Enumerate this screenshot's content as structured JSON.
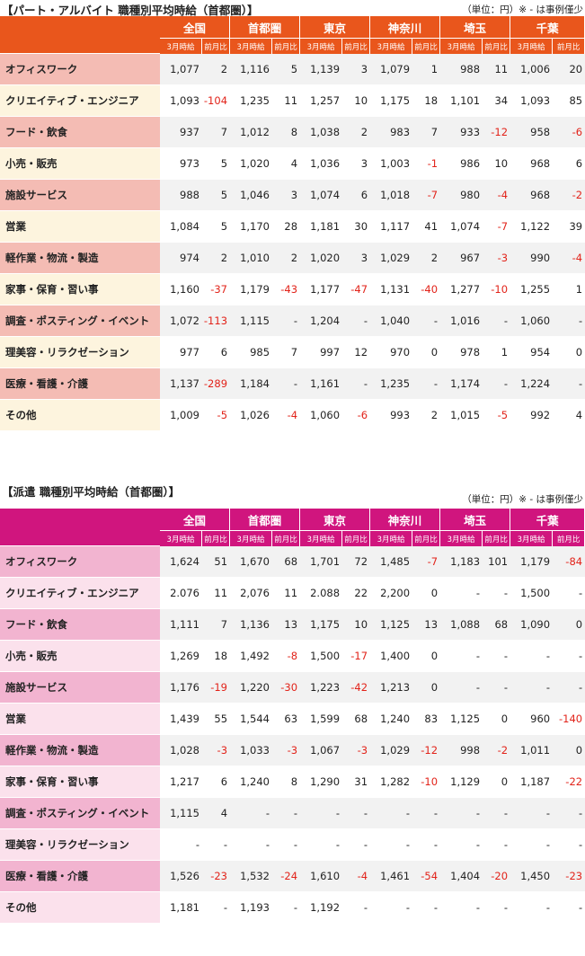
{
  "columns": {
    "regions": [
      "全国",
      "首都圏",
      "東京",
      "神奈川",
      "埼玉",
      "千葉"
    ],
    "sub_value": "3月時給",
    "sub_change": "前月比"
  },
  "part_time": {
    "title": "【パート・アルバイト 職種別平均時給（首都圏）】",
    "note": "（単位：円）※ - は事例僅少",
    "rows": [
      {
        "category": "オフィスワーク",
        "cells": [
          "1,077",
          "2",
          "1,116",
          "5",
          "1,139",
          "3",
          "1,079",
          "1",
          "988",
          "11",
          "1,006",
          "20"
        ]
      },
      {
        "category": "クリエイティブ・エンジニア",
        "cells": [
          "1,093",
          "-104",
          "1,235",
          "11",
          "1,257",
          "10",
          "1,175",
          "18",
          "1,101",
          "34",
          "1,093",
          "85"
        ]
      },
      {
        "category": "フード・飲食",
        "cells": [
          "937",
          "7",
          "1,012",
          "8",
          "1,038",
          "2",
          "983",
          "7",
          "933",
          "-12",
          "958",
          "-6"
        ]
      },
      {
        "category": "小売・販売",
        "cells": [
          "973",
          "5",
          "1,020",
          "4",
          "1,036",
          "3",
          "1,003",
          "-1",
          "986",
          "10",
          "968",
          "6"
        ]
      },
      {
        "category": "施設サービス",
        "cells": [
          "988",
          "5",
          "1,046",
          "3",
          "1,074",
          "6",
          "1,018",
          "-7",
          "980",
          "-4",
          "968",
          "-2"
        ]
      },
      {
        "category": "営業",
        "cells": [
          "1,084",
          "5",
          "1,170",
          "28",
          "1,181",
          "30",
          "1,117",
          "41",
          "1,074",
          "-7",
          "1,122",
          "39"
        ]
      },
      {
        "category": "軽作業・物流・製造",
        "cells": [
          "974",
          "2",
          "1,010",
          "2",
          "1,020",
          "3",
          "1,029",
          "2",
          "967",
          "-3",
          "990",
          "-4"
        ]
      },
      {
        "category": "家事・保育・習い事",
        "cells": [
          "1,160",
          "-37",
          "1,179",
          "-43",
          "1,177",
          "-47",
          "1,131",
          "-40",
          "1,277",
          "-10",
          "1,255",
          "1"
        ]
      },
      {
        "category": "調査・ポスティング・イベント",
        "cells": [
          "1,072",
          "-113",
          "1,115",
          "-",
          "1,204",
          "-",
          "1,040",
          "-",
          "1,016",
          "-",
          "1,060",
          "-"
        ]
      },
      {
        "category": "理美容・リラクゼーション",
        "cells": [
          "977",
          "6",
          "985",
          "7",
          "997",
          "12",
          "970",
          "0",
          "978",
          "1",
          "954",
          "0"
        ]
      },
      {
        "category": "医療・看護・介護",
        "cells": [
          "1,137",
          "-289",
          "1,184",
          "-",
          "1,161",
          "-",
          "1,235",
          "-",
          "1,174",
          "-",
          "1,224",
          "-"
        ]
      },
      {
        "category": "その他",
        "cells": [
          "1,009",
          "-5",
          "1,026",
          "-4",
          "1,060",
          "-6",
          "993",
          "2",
          "1,015",
          "-5",
          "992",
          "4"
        ]
      }
    ]
  },
  "dispatch": {
    "title": "【派遣 職種別平均時給（首都圏）】",
    "note": "（単位：円）※ - は事例僅少",
    "rows": [
      {
        "category": "オフィスワーク",
        "cells": [
          "1,624",
          "51",
          "1,670",
          "68",
          "1,701",
          "72",
          "1,485",
          "-7",
          "1,183",
          "101",
          "1,179",
          "-84"
        ]
      },
      {
        "category": "クリエイティブ・エンジニア",
        "cells": [
          "2.076",
          "11",
          "2,076",
          "11",
          "2.088",
          "22",
          "2,200",
          "0",
          "-",
          "-",
          "1,500",
          "-"
        ]
      },
      {
        "category": "フード・飲食",
        "cells": [
          "1,111",
          "7",
          "1,136",
          "13",
          "1,175",
          "10",
          "1,125",
          "13",
          "1,088",
          "68",
          "1,090",
          "0"
        ]
      },
      {
        "category": "小売・販売",
        "cells": [
          "1,269",
          "18",
          "1,492",
          "-8",
          "1,500",
          "-17",
          "1,400",
          "0",
          "-",
          "-",
          "-",
          "-"
        ]
      },
      {
        "category": "施設サービス",
        "cells": [
          "1,176",
          "-19",
          "1,220",
          "-30",
          "1,223",
          "-42",
          "1,213",
          "0",
          "-",
          "-",
          "-",
          "-"
        ]
      },
      {
        "category": "営業",
        "cells": [
          "1,439",
          "55",
          "1,544",
          "63",
          "1,599",
          "68",
          "1,240",
          "83",
          "1,125",
          "0",
          "960",
          "-140"
        ]
      },
      {
        "category": "軽作業・物流・製造",
        "cells": [
          "1,028",
          "-3",
          "1,033",
          "-3",
          "1,067",
          "-3",
          "1,029",
          "-12",
          "998",
          "-2",
          "1,011",
          "0"
        ]
      },
      {
        "category": "家事・保育・習い事",
        "cells": [
          "1,217",
          "6",
          "1,240",
          "8",
          "1,290",
          "31",
          "1,282",
          "-10",
          "1,129",
          "0",
          "1,187",
          "-22"
        ]
      },
      {
        "category": "調査・ポスティング・イベント",
        "cells": [
          "1,115",
          "4",
          "-",
          "-",
          "-",
          "-",
          "-",
          "-",
          "-",
          "-",
          "-",
          "-"
        ]
      },
      {
        "category": "理美容・リラクゼーション",
        "cells": [
          "-",
          "-",
          "-",
          "-",
          "-",
          "-",
          "-",
          "-",
          "-",
          "-",
          "-",
          "-"
        ]
      },
      {
        "category": "医療・看護・介護",
        "cells": [
          "1,526",
          "-23",
          "1,532",
          "-24",
          "1,610",
          "-4",
          "1,461",
          "-54",
          "1,404",
          "-20",
          "1,450",
          "-23"
        ]
      },
      {
        "category": "その他",
        "cells": [
          "1,181",
          "-",
          "1,193",
          "-",
          "1,192",
          "-",
          "-",
          "-",
          "-",
          "-",
          "-",
          "-"
        ]
      }
    ]
  }
}
